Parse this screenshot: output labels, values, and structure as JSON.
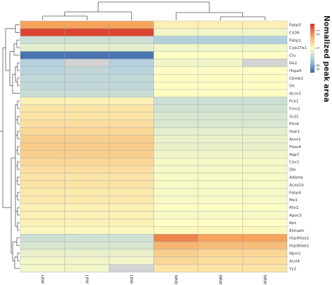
{
  "chart_data": {
    "type": "heatmap",
    "title": "",
    "xlabel": "",
    "ylabel": "",
    "legend_title": "Nomalized peak area",
    "legend_placement": "top-right",
    "colorbar": {
      "range": [
        0.3,
        1.7
      ],
      "ticks": [
        0.5,
        1,
        1.5
      ],
      "tick_labels": [
        "0.5",
        "1",
        "1.5"
      ]
    },
    "colors": {
      "low": "#3a66a8",
      "mid": "#fdfdc4",
      "high": "#d8352a",
      "missing": "#d3d3d3"
    },
    "columns": [
      "LRW 2",
      "LRW 3",
      "LRW 1",
      "NRW 1",
      "NRW 2",
      "NRW 3"
    ],
    "rows": [
      "Fabp5",
      "Cd36",
      "Fabp1",
      "Cyp27a1",
      "Clu",
      "Gk2",
      "Hspa5",
      "Cbmb1",
      "Gk",
      "Acsx3",
      "Pck1",
      "Fmn2",
      "Scd1",
      "Plin4",
      "Stat1",
      "Acsx1",
      "Fbxo4",
      "Aqp7",
      "Cav1",
      "Dbi",
      "Adipoq",
      "Acaa1b",
      "Fabp4",
      "Me1",
      "Plin1",
      "Apoc3",
      "Nnt",
      "Ehhadh",
      "Hsp90aa1",
      "Hsp90ab1",
      "Npm1",
      "Acsl4",
      "Yy1"
    ],
    "values": [
      [
        1.35,
        1.35,
        1.35,
        1.05,
        1.05,
        1.05
      ],
      [
        1.65,
        1.65,
        1.65,
        0.95,
        0.95,
        0.95
      ],
      [
        0.8,
        0.8,
        0.8,
        0.7,
        0.7,
        0.7
      ],
      [
        0.9,
        0.9,
        0.9,
        0.95,
        0.95,
        0.95
      ],
      [
        0.35,
        0.35,
        0.35,
        1.0,
        1.0,
        1.0
      ],
      [
        0.7,
        null,
        0.7,
        0.95,
        0.95,
        null
      ],
      [
        0.72,
        0.75,
        0.72,
        1.0,
        1.0,
        1.0
      ],
      [
        0.75,
        0.75,
        0.75,
        1.0,
        1.0,
        1.0
      ],
      [
        0.75,
        0.75,
        0.75,
        1.0,
        1.0,
        1.0
      ],
      [
        0.78,
        0.78,
        0.78,
        1.0,
        1.0,
        1.0
      ],
      [
        1.05,
        1.05,
        1.05,
        0.8,
        0.8,
        0.8
      ],
      [
        1.1,
        1.1,
        1.1,
        0.82,
        0.82,
        0.82
      ],
      [
        1.1,
        1.1,
        1.1,
        0.85,
        0.85,
        0.85
      ],
      [
        1.12,
        1.12,
        1.12,
        0.85,
        0.85,
        0.85
      ],
      [
        1.15,
        1.15,
        1.15,
        0.9,
        0.9,
        0.9
      ],
      [
        1.18,
        1.18,
        1.18,
        0.92,
        0.92,
        0.92
      ],
      [
        1.2,
        1.2,
        1.2,
        0.92,
        0.92,
        0.92
      ],
      [
        1.18,
        1.18,
        1.18,
        0.95,
        0.95,
        0.95
      ],
      [
        1.15,
        1.15,
        1.15,
        0.97,
        0.97,
        0.97
      ],
      [
        1.12,
        1.12,
        1.12,
        0.97,
        0.97,
        0.97
      ],
      [
        1.1,
        1.1,
        1.1,
        0.98,
        0.98,
        0.98
      ],
      [
        1.1,
        1.1,
        1.1,
        0.98,
        0.98,
        0.98
      ],
      [
        1.08,
        1.08,
        1.08,
        0.97,
        0.97,
        0.97
      ],
      [
        1.08,
        1.08,
        1.08,
        0.98,
        0.98,
        0.98
      ],
      [
        1.05,
        1.05,
        1.05,
        1.0,
        1.0,
        1.0
      ],
      [
        1.05,
        1.05,
        1.05,
        0.98,
        0.98,
        0.98
      ],
      [
        1.05,
        1.05,
        1.05,
        1.0,
        1.0,
        1.0
      ],
      [
        1.02,
        1.02,
        1.02,
        1.02,
        1.02,
        1.02
      ],
      [
        0.8,
        0.82,
        0.82,
        1.45,
        1.35,
        1.35
      ],
      [
        0.85,
        0.85,
        0.85,
        1.28,
        1.25,
        1.25
      ],
      [
        0.92,
        0.92,
        0.92,
        1.18,
        1.15,
        1.15
      ],
      [
        0.95,
        0.95,
        0.95,
        1.15,
        1.12,
        1.12
      ],
      [
        0.95,
        0.95,
        null,
        1.1,
        1.1,
        1.1
      ]
    ]
  }
}
